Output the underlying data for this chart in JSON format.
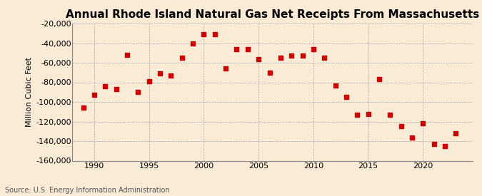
{
  "title": "Annual Rhode Island Natural Gas Net Receipts From Massachusetts",
  "ylabel": "Million Cubic Feet",
  "source": "Source: U.S. Energy Information Administration",
  "years": [
    1989,
    1990,
    1991,
    1992,
    1993,
    1994,
    1995,
    1996,
    1997,
    1998,
    1999,
    2000,
    2001,
    2002,
    2003,
    2004,
    2005,
    2006,
    2007,
    2008,
    2009,
    2010,
    2011,
    2012,
    2013,
    2014,
    2015,
    2016,
    2017,
    2018,
    2019,
    2020,
    2021,
    2022,
    2023
  ],
  "values": [
    -106000,
    -93000,
    -84000,
    -87000,
    -52000,
    -90000,
    -79000,
    -71000,
    -73000,
    -55000,
    -40000,
    -31000,
    -31000,
    -66000,
    -46000,
    -46000,
    -56000,
    -70000,
    -55000,
    -53000,
    -53000,
    -46000,
    -55000,
    -83000,
    -95000,
    -113000,
    -112000,
    -77000,
    -113000,
    -125000,
    -136000,
    -122000,
    -143000,
    -145000,
    -132000
  ],
  "marker_color": "#cc0000",
  "marker_size": 20,
  "background_color": "#faebd7",
  "grid_color": "#aaaaaa",
  "ylim": [
    -160000,
    -20000
  ],
  "yticks": [
    -160000,
    -140000,
    -120000,
    -100000,
    -80000,
    -60000,
    -40000,
    -20000
  ],
  "xlim": [
    1988.0,
    2024.5
  ],
  "xticks": [
    1990,
    1995,
    2000,
    2005,
    2010,
    2015,
    2020
  ],
  "title_fontsize": 11,
  "tick_fontsize": 8,
  "source_fontsize": 7
}
